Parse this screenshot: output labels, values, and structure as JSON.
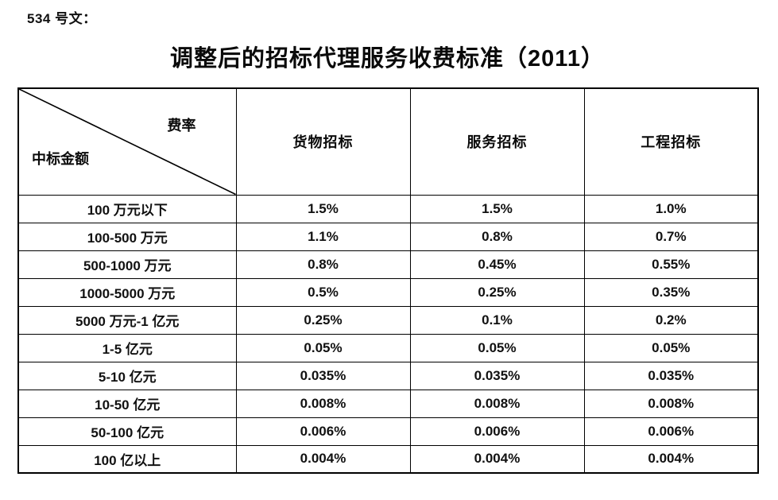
{
  "document": {
    "label": "534 号文：",
    "title": "调整后的招标代理服务收费标准（2011）"
  },
  "table": {
    "corner": {
      "top_right": "费率",
      "bottom_left": "中标金额"
    },
    "columns": [
      "货物招标",
      "服务招标",
      "工程招标"
    ],
    "rows": [
      {
        "amount": "100 万元以下",
        "values": [
          "1.5%",
          "1.5%",
          "1.0%"
        ]
      },
      {
        "amount": "100-500 万元",
        "values": [
          "1.1%",
          "0.8%",
          "0.7%"
        ]
      },
      {
        "amount": "500-1000 万元",
        "values": [
          "0.8%",
          "0.45%",
          "0.55%"
        ]
      },
      {
        "amount": "1000-5000 万元",
        "values": [
          "0.5%",
          "0.25%",
          "0.35%"
        ]
      },
      {
        "amount": "5000 万元-1 亿元",
        "values": [
          "0.25%",
          "0.1%",
          "0.2%"
        ]
      },
      {
        "amount": "1-5 亿元",
        "values": [
          "0.05%",
          "0.05%",
          "0.05%"
        ]
      },
      {
        "amount": "5-10 亿元",
        "values": [
          "0.035%",
          "0.035%",
          "0.035%"
        ]
      },
      {
        "amount": "10-50 亿元",
        "values": [
          "0.008%",
          "0.008%",
          "0.008%"
        ]
      },
      {
        "amount": "50-100 亿元",
        "values": [
          "0.006%",
          "0.006%",
          "0.006%"
        ]
      },
      {
        "amount": "100 亿以上",
        "values": [
          "0.004%",
          "0.004%",
          "0.004%"
        ]
      }
    ]
  },
  "colors": {
    "text": "#111111",
    "border": "#000000",
    "background": "#ffffff"
  }
}
